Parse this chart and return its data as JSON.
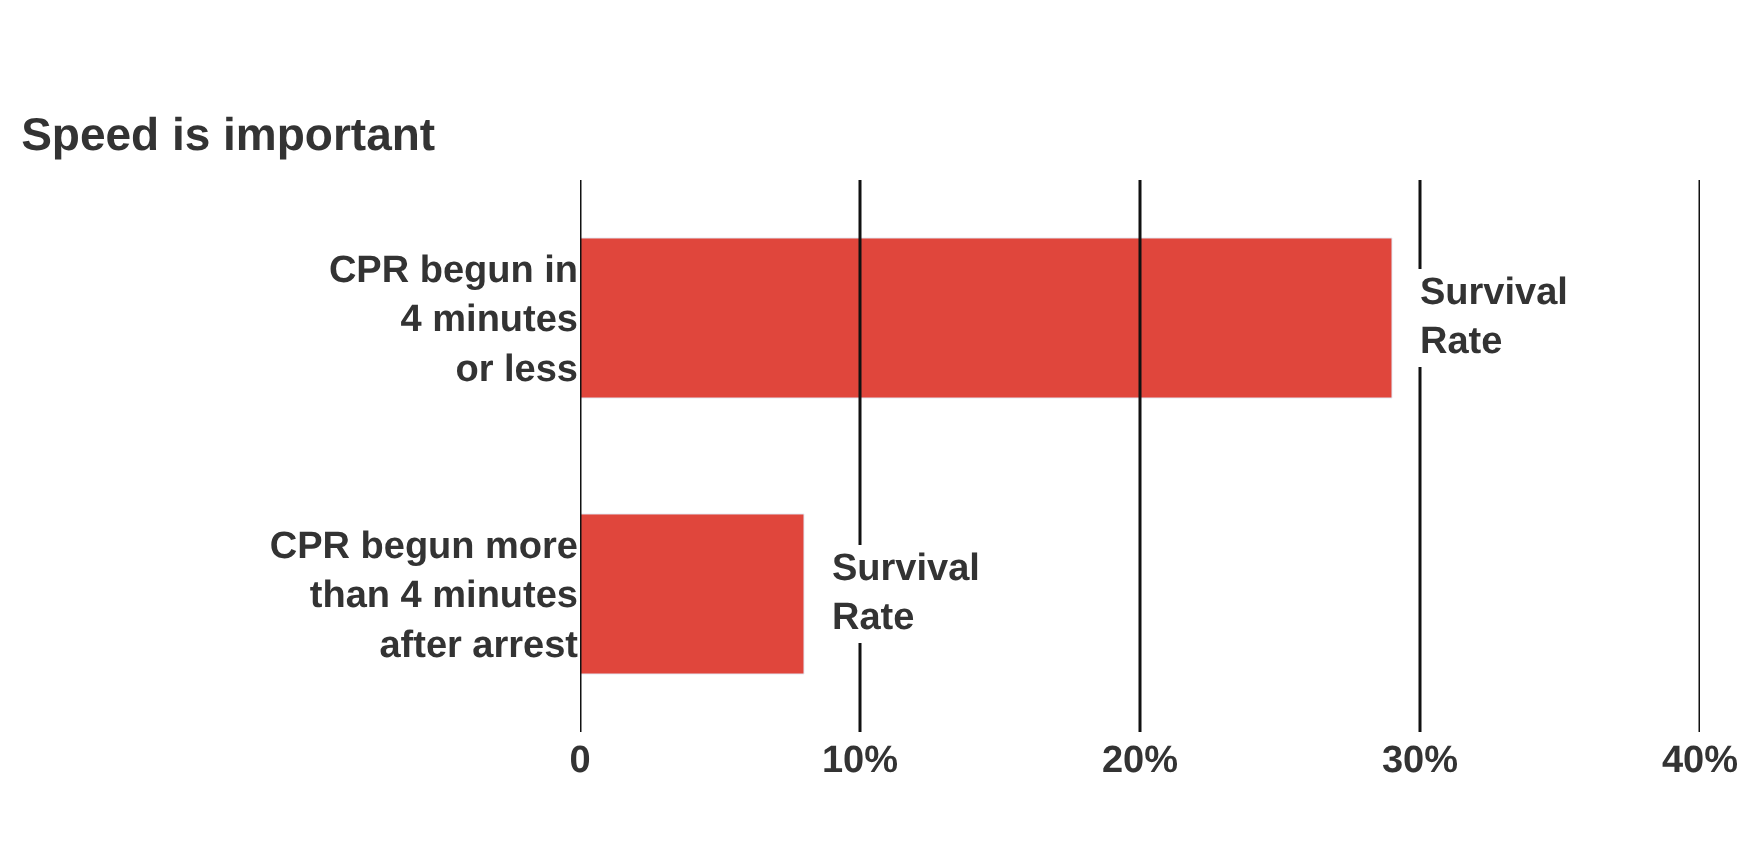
{
  "chart_data": {
    "type": "bar",
    "orientation": "horizontal",
    "title": "Speed is important",
    "categories": [
      "CPR begun in\n4 minutes\nor less",
      "CPR begun more\nthan 4 minutes\nafter arrest"
    ],
    "values": [
      29,
      8
    ],
    "color": "#e0463c",
    "xlim": [
      0,
      40
    ],
    "xticks": [
      {
        "value": 0,
        "label": "0"
      },
      {
        "value": 10,
        "label": "10%"
      },
      {
        "value": 20,
        "label": "20%"
      },
      {
        "value": 30,
        "label": "30%"
      },
      {
        "value": 40,
        "label": "40%"
      }
    ],
    "grid": "x",
    "annotations": [
      {
        "text": "Survival\nRate",
        "x": 29,
        "y": "CPR begun in\n4 minutes\nor less"
      },
      {
        "text": "Survival\nRate",
        "x": 8,
        "y": "CPR begun more\nthan 4 minutes\nafter arrest"
      }
    ]
  }
}
